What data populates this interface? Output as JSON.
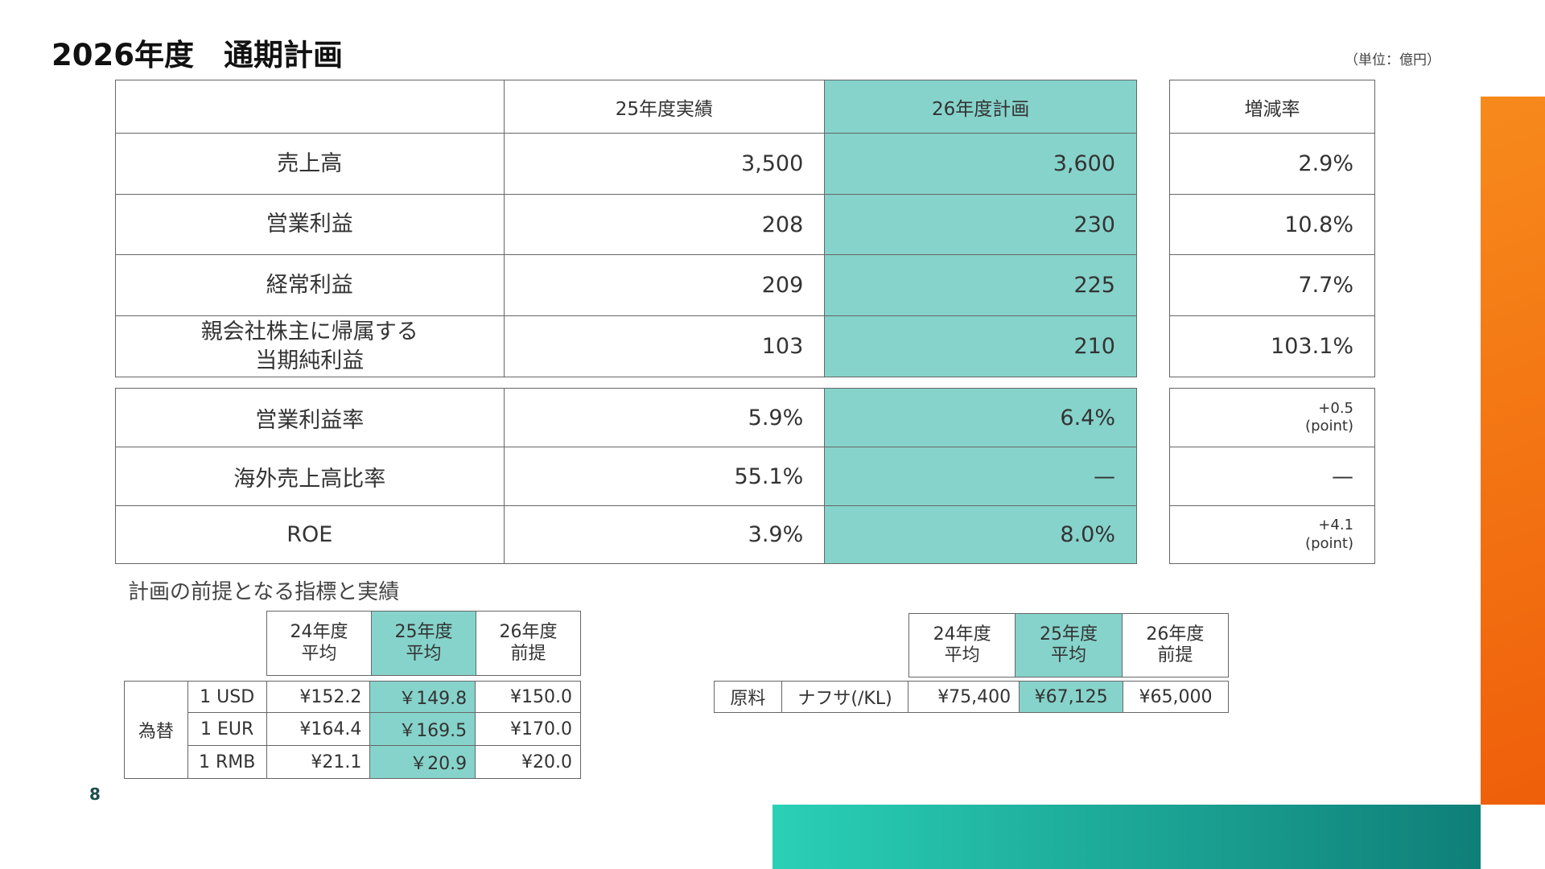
{
  "title": "2026年度　通期計画",
  "unit": "（単位：億円）",
  "main": {
    "headers": [
      "",
      "25年度実績",
      "26年度計画",
      "増減率"
    ],
    "rows": [
      {
        "label": "売上高",
        "fy25": "3,500",
        "fy26": "3,600",
        "change": "2.9%"
      },
      {
        "label": "営業利益",
        "fy25": "208",
        "fy26": "230",
        "change": "10.8%"
      },
      {
        "label": "経常利益",
        "fy25": "209",
        "fy26": "225",
        "change": "7.7%"
      },
      {
        "label": "親会社株主に帰属する\n当期純利益",
        "fy25": "103",
        "fy26": "210",
        "change": "103.1%"
      }
    ],
    "ratios": [
      {
        "label": "営業利益率",
        "fy25": "5.9%",
        "fy26": "6.4%",
        "change": "+0.5",
        "change_unit": "(point)"
      },
      {
        "label": "海外売上高比率",
        "fy25": "55.1%",
        "fy26": "—",
        "change": "—",
        "change_unit": ""
      },
      {
        "label": "ROE",
        "fy25": "3.9%",
        "fy26": "8.0%",
        "change": "+4.1",
        "change_unit": "(point)"
      }
    ]
  },
  "assumptions_title": "計画の前提となる指標と実績",
  "fx": {
    "headers": [
      "24年度\n平均",
      "25年度\n平均",
      "26年度\n前提"
    ],
    "group": "為替",
    "rows": [
      {
        "label": "1 USD",
        "v24": "¥152.2",
        "v25": "￥149.8",
        "v26": "¥150.0"
      },
      {
        "label": "1 EUR",
        "v24": "¥164.4",
        "v25": "￥169.5",
        "v26": "¥170.0"
      },
      {
        "label": "1 RMB",
        "v24": "¥21.1",
        "v25": "￥20.9",
        "v26": "¥20.0"
      }
    ]
  },
  "material": {
    "headers": [
      "24年度\n平均",
      "25年度\n平均",
      "26年度\n前提"
    ],
    "group": "原料",
    "label": "ナフサ(/KL)",
    "v24": "¥75,400",
    "v25": "¥67,125",
    "v26": "¥65,000"
  },
  "page_number": "8",
  "colors": {
    "highlight": "#86d3cb",
    "orange": "#f47a12",
    "teal": "#1aa99a"
  }
}
